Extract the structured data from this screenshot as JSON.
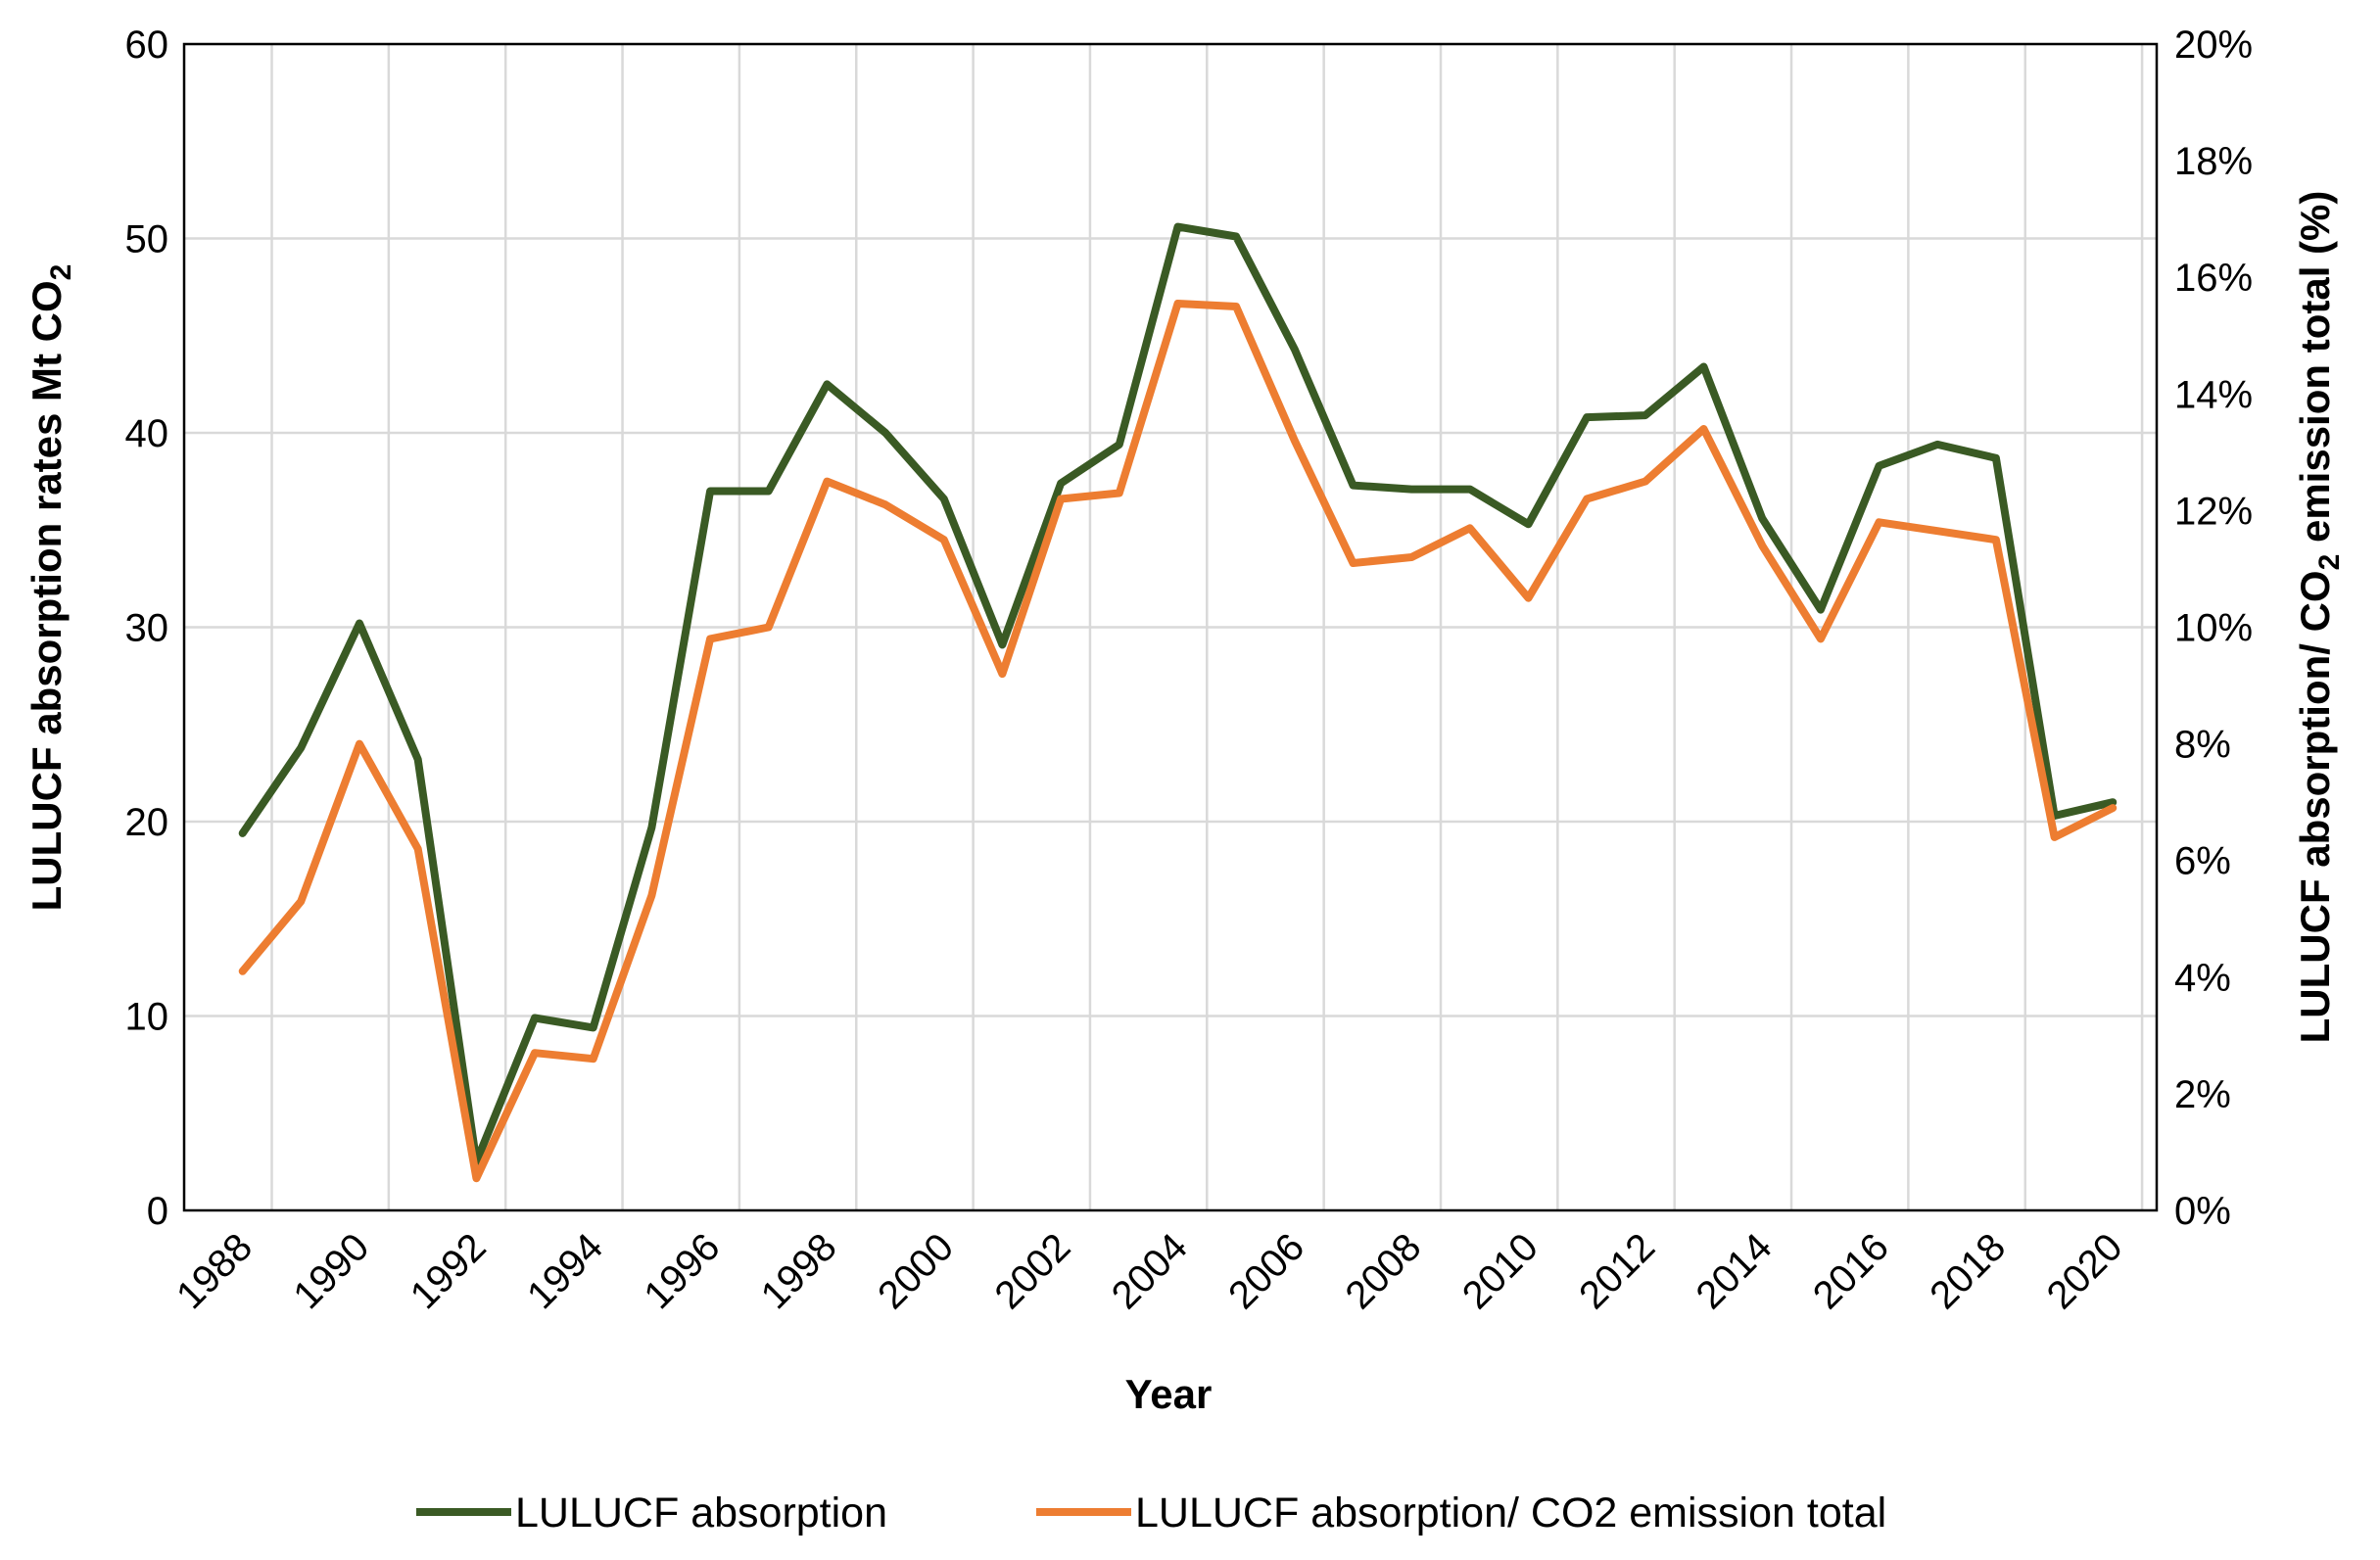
{
  "chart_data": {
    "type": "line",
    "x": [
      1988,
      1989,
      1990,
      1991,
      1992,
      1993,
      1994,
      1995,
      1996,
      1997,
      1998,
      1999,
      2000,
      2001,
      2002,
      2003,
      2004,
      2005,
      2006,
      2007,
      2008,
      2009,
      2010,
      2011,
      2012,
      2013,
      2014,
      2015,
      2016,
      2017,
      2018,
      2019,
      2020
    ],
    "xticks": [
      "1988",
      "1990",
      "1992",
      "1994",
      "1996",
      "1998",
      "2000",
      "2002",
      "2004",
      "2006",
      "2008",
      "2010",
      "2012",
      "2014",
      "2016",
      "2018",
      "2020"
    ],
    "xlabel": "Year",
    "ylabel_left_main": "LULUCF absorption  rates Mt CO",
    "ylabel_left_sub": "2",
    "ylabel_right_main": "LULUCF absorption/ CO",
    "ylabel_right_sub": "2",
    "ylabel_right_rest": " emission total (%)",
    "ylim_left": [
      0,
      60
    ],
    "yticks_left": [
      "0",
      "10",
      "20",
      "30",
      "40",
      "50",
      "60"
    ],
    "ylim_right": [
      0,
      20
    ],
    "yticks_right": [
      "0%",
      "2%",
      "4%",
      "6%",
      "8%",
      "10%",
      "12%",
      "14%",
      "16%",
      "18%",
      "20%"
    ],
    "grid": true,
    "legend_position": "bottom",
    "series": [
      {
        "name": "LULUCF absorption",
        "axis": "left",
        "color": "#3a5a24",
        "values": [
          19.4,
          23.8,
          30.2,
          23.2,
          2.5,
          9.9,
          9.4,
          19.7,
          37.0,
          37.0,
          42.5,
          40.0,
          36.6,
          29.1,
          37.4,
          39.4,
          50.6,
          50.1,
          44.3,
          37.3,
          37.1,
          37.1,
          35.3,
          40.8,
          40.9,
          43.4,
          35.6,
          30.9,
          38.3,
          39.4,
          38.7,
          20.3,
          21.0
        ]
      },
      {
        "name": "LULUCF absorption/ CO2 emission total",
        "axis": "right",
        "color": "#ed7d31",
        "values": [
          4.1,
          5.3,
          8.0,
          6.2,
          0.55,
          2.7,
          2.6,
          5.4,
          9.8,
          10.0,
          12.5,
          12.1,
          11.5,
          9.2,
          12.2,
          12.3,
          15.55,
          15.5,
          13.2,
          11.1,
          11.2,
          11.7,
          10.5,
          12.2,
          12.5,
          13.4,
          11.4,
          9.8,
          11.8,
          11.65,
          11.5,
          6.4,
          6.9
        ]
      }
    ]
  },
  "legend": {
    "items": [
      {
        "label": "LULUCF absorption",
        "color": "#3a5a24"
      },
      {
        "label": "LULUCF absorption/ CO2 emission total",
        "color": "#ed7d31"
      }
    ]
  }
}
